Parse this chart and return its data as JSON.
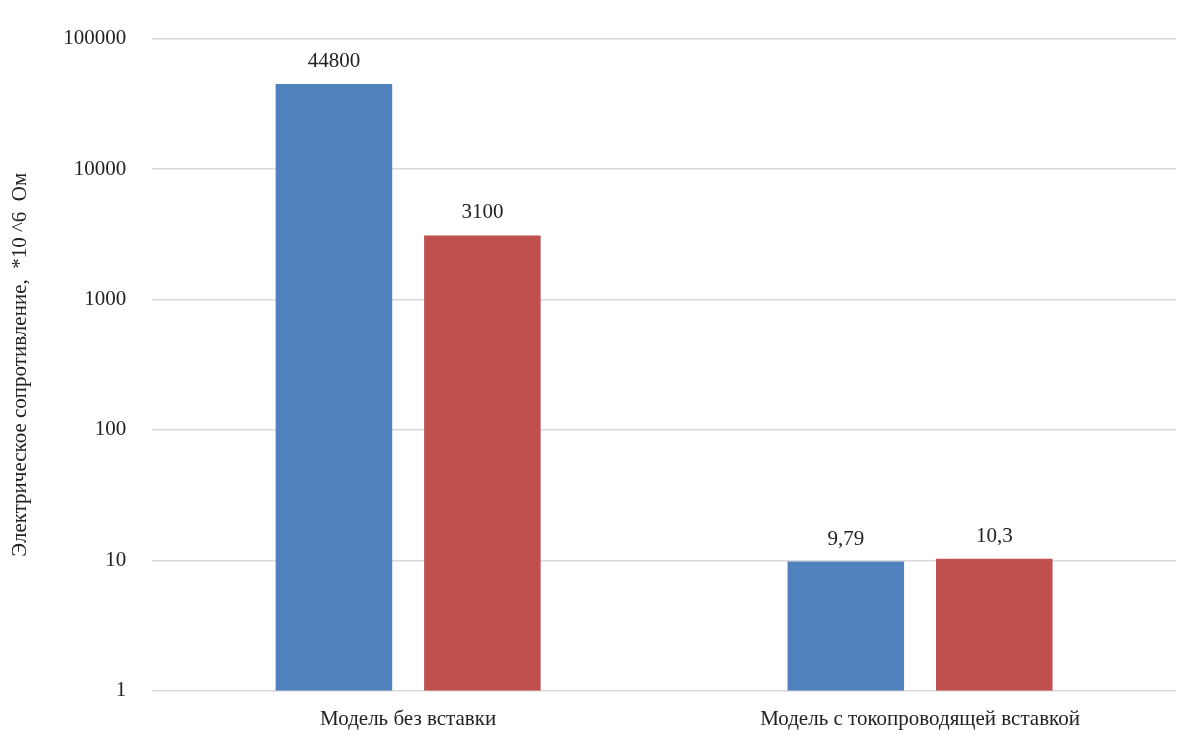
{
  "chart_data": {
    "type": "bar",
    "ylabel": "Электрическое сопротивление,  *10 ^6  Ом",
    "categories": [
      "Модель без вставки",
      "Модель с токопроводящей вставкой"
    ],
    "series": [
      {
        "color": "#4f81bd",
        "values": [
          44800,
          9.79
        ],
        "value_labels": [
          "44800",
          "9,79"
        ]
      },
      {
        "color": "#c0504d",
        "values": [
          3100,
          10.3
        ],
        "value_labels": [
          "3100",
          "10,3"
        ]
      }
    ],
    "log": "y",
    "ylim": [
      1,
      100000
    ],
    "yticks": [
      1,
      10,
      100,
      1000,
      10000,
      100000
    ],
    "grid": "y",
    "legend": false
  }
}
